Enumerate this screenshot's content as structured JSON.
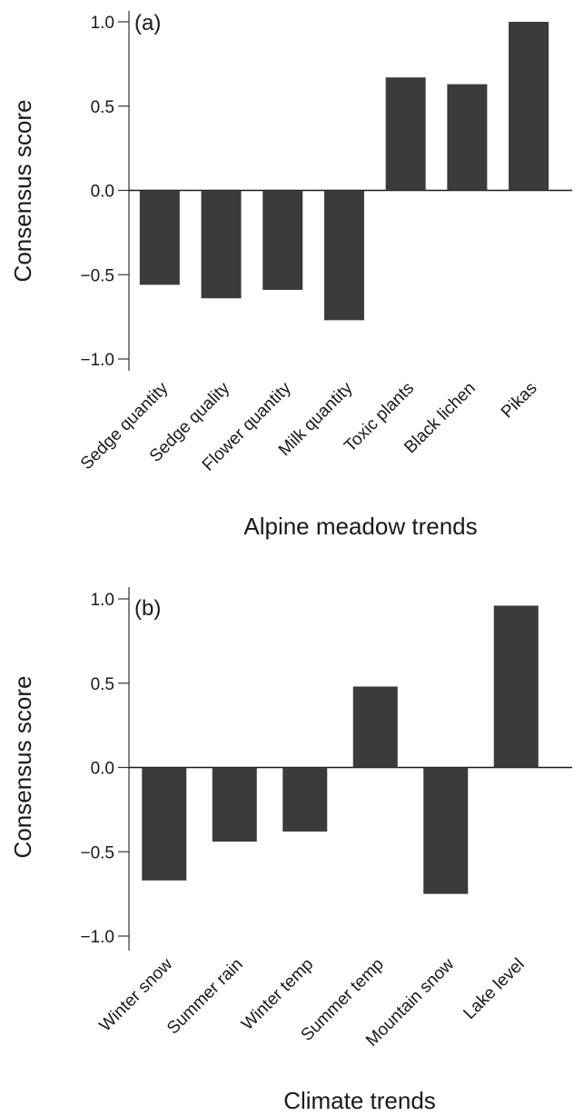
{
  "colors": {
    "bar": "#3b3b3b",
    "axis": "#333333",
    "background": "#ffffff"
  },
  "chart_data": [
    {
      "type": "bar",
      "panel_label": "(a)",
      "categories": [
        "Sedge quantity",
        "Sedge quality",
        "Flower quantity",
        "Milk quantity",
        "Toxic plants",
        "Black lichen",
        "Pikas"
      ],
      "values": [
        -0.56,
        -0.64,
        -0.59,
        -0.77,
        0.67,
        0.63,
        1.0
      ],
      "xlabel": "Alpine meadow trends",
      "ylabel": "Consensus score",
      "ylim": [
        -1.0,
        1.0
      ],
      "yticks": [
        1.0,
        0.5,
        0.0,
        -0.5,
        -1.0
      ],
      "ytick_labels": [
        "1.0",
        "0.5",
        "0.0",
        "−0.5",
        "−1.0"
      ],
      "grid": false,
      "legend": "none"
    },
    {
      "type": "bar",
      "panel_label": "(b)",
      "categories": [
        "Winter snow",
        "Summer rain",
        "Winter temp",
        "Summer temp",
        "Mountain snow",
        "Lake level"
      ],
      "values": [
        -0.67,
        -0.44,
        -0.38,
        0.48,
        -0.75,
        0.96
      ],
      "xlabel": "Climate trends",
      "ylabel": "Consensus score",
      "ylim": [
        -1.0,
        1.0
      ],
      "yticks": [
        1.0,
        0.5,
        0.0,
        -0.5,
        -1.0
      ],
      "ytick_labels": [
        "1.0",
        "0.5",
        "0.0",
        "−0.5",
        "−1.0"
      ],
      "grid": false,
      "legend": "none"
    }
  ]
}
